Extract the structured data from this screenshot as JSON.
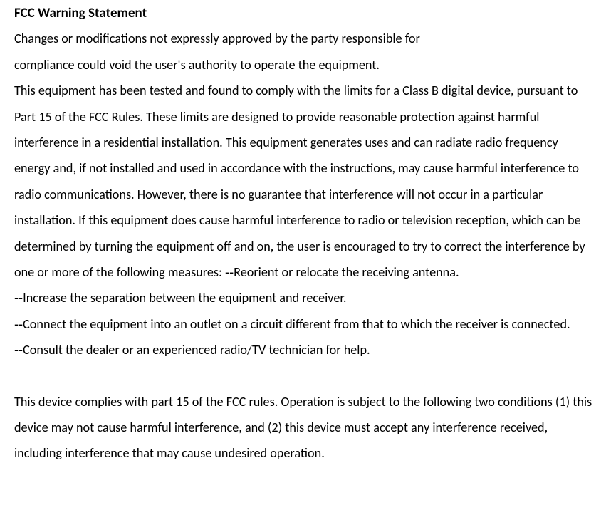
{
  "doc": {
    "title": "FCC Warning Statement",
    "body_fontsize_pt": 13.5,
    "heading_fontsize_pt": 14,
    "line_height": 2.0,
    "text_color": "#000000",
    "background_color": "#ffffff",
    "font_family": "Calibri",
    "paragraphs": [
      "Changes or modifications not expressly approved by the party responsible for",
      "compliance could void the user's authority to operate the equipment.",
      "This equipment has been tested and found to comply with the limits for a Class B digital device, pursuant to Part 15 of the FCC Rules. These limits are designed to provide reasonable protection against harmful interference in a residential installation. This equipment generates uses and can radiate radio frequency energy and, if not installed and used in accordance with the instructions, may cause harmful interference to radio communications. However, there is no guarantee that interference will not occur in a particular installation. If this equipment does cause harmful interference to radio or television reception, which can be determined by turning the equipment off and on, the user is encouraged to try to correct the interference by one or more of the following measures: ‐‐Reorient or relocate the receiving antenna.",
      "‐‐Increase the separation between the equipment and receiver.",
      "‐‐Connect the equipment into an outlet on a circuit different from that to which the receiver is connected.",
      "‐‐Consult the dealer or an experienced radio/TV technician for help.",
      "",
      "This device complies with part 15 of the FCC rules. Operation is subject to the following two conditions (1) this device may not cause harmful interference, and (2) this device must accept any interference received, including interference that may cause undesired operation."
    ]
  }
}
